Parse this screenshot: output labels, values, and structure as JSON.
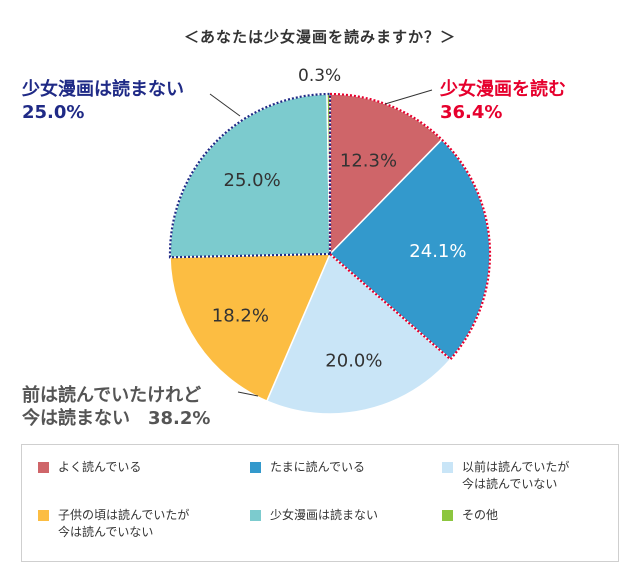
{
  "title": "＜あなたは少女漫画を読みますか？＞",
  "chart_data": {
    "type": "pie",
    "title": "＜あなたは少女漫画を読みますか？＞",
    "slices": [
      {
        "name": "よく読んでいる",
        "value": 12.3,
        "label": "12.3%",
        "color": "#cf6569"
      },
      {
        "name": "たまに読んでいる",
        "value": 24.1,
        "label": "24.1%",
        "color": "#3399cc"
      },
      {
        "name": "以前は読んでいたが\n今は読んでいない",
        "value": 20.0,
        "label": "20.0%",
        "color": "#c9e5f7"
      },
      {
        "name": "子供の頃は読んでいたが\n今は読んでいない",
        "value": 18.2,
        "label": "18.2%",
        "color": "#fcbd42"
      },
      {
        "name": "少女漫画は読まない",
        "value": 25.0,
        "label": "25.0%",
        "color": "#7ccbce"
      },
      {
        "name": "その他",
        "value": 0.3,
        "label": "0.3%",
        "color": "#8cc63f"
      }
    ],
    "groups": [
      {
        "line1": "少女漫画を読む",
        "line2": "36.4%",
        "color": "#e6002d"
      },
      {
        "line1": "少女漫画は読まない",
        "line2": "25.0%",
        "color": "#1f2a86"
      },
      {
        "line1": "前は読んでいたけれど",
        "line2": "今は読まない　38.2%",
        "color": "#555555"
      }
    ],
    "legend_position": "bottom"
  }
}
